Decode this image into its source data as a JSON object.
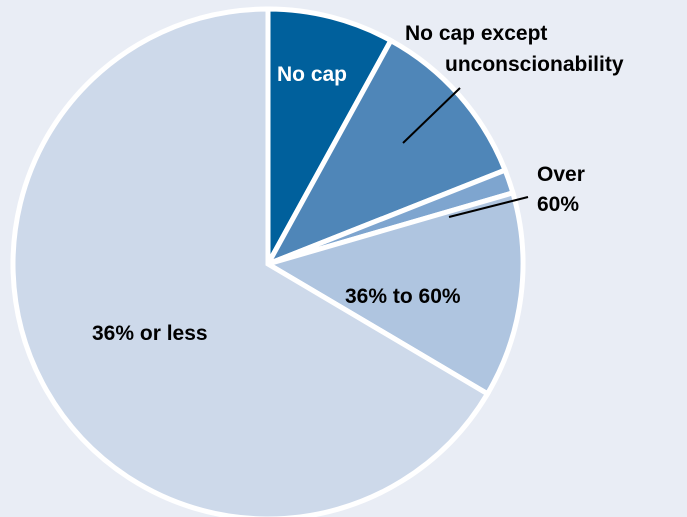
{
  "chart_data": {
    "type": "pie",
    "title": "",
    "slices": [
      {
        "label": "No cap",
        "value": 8,
        "color": "#00609c",
        "label_color": "#ffffff"
      },
      {
        "label": "No cap except unconscionability",
        "value": 11,
        "color": "#4f86b8",
        "label_color": "#000000"
      },
      {
        "label": "Over 60%",
        "value": 1.5,
        "color": "#7ea5cf",
        "label_color": "#000000"
      },
      {
        "label": "36% to 60%",
        "value": 13,
        "color": "#afc5e0",
        "label_color": "#000000"
      },
      {
        "label": "36% or less",
        "value": 66.5,
        "color": "#cdd9ea",
        "label_color": "#000000"
      }
    ],
    "legend": "none"
  }
}
